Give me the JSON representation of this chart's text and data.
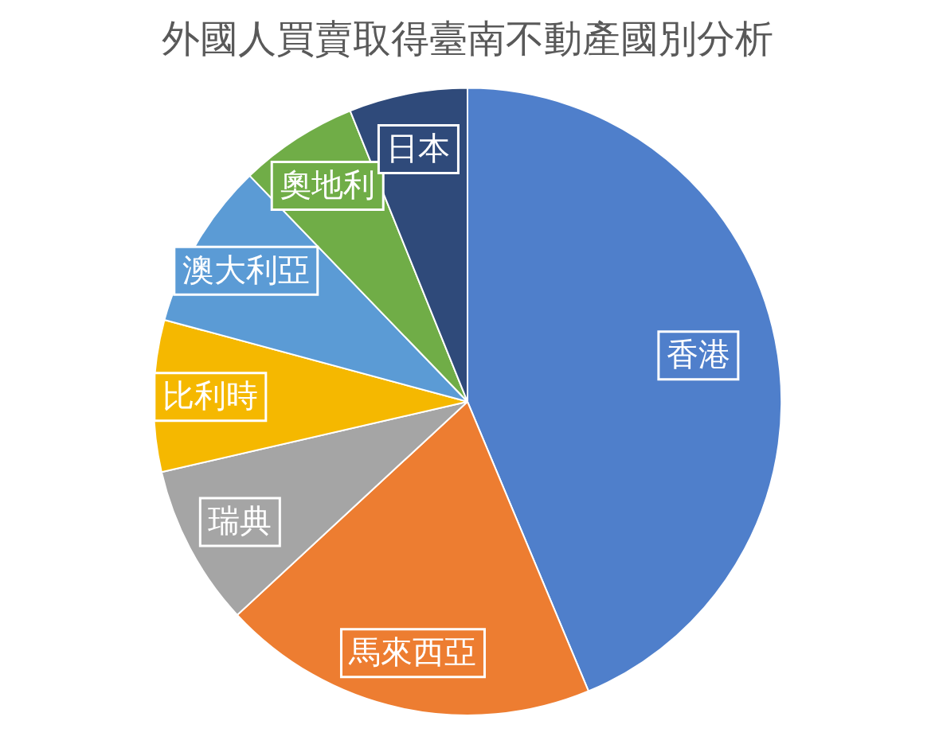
{
  "chart_data": {
    "type": "pie",
    "title": "外國人買賣取得臺南不動產國別分析",
    "categories": [
      "香港",
      "馬來西亞",
      "瑞典",
      "比利時",
      "澳大利亞",
      "奧地利",
      "日本"
    ],
    "values": [
      43.7,
      19.4,
      8.3,
      7.8,
      8.6,
      6.1,
      6.1
    ],
    "colors": [
      "#4f7fcb",
      "#ed7d31",
      "#a5a5a5",
      "#f5b800",
      "#5b9bd5",
      "#70ad47",
      "#2f4a7a"
    ],
    "legend": false
  }
}
